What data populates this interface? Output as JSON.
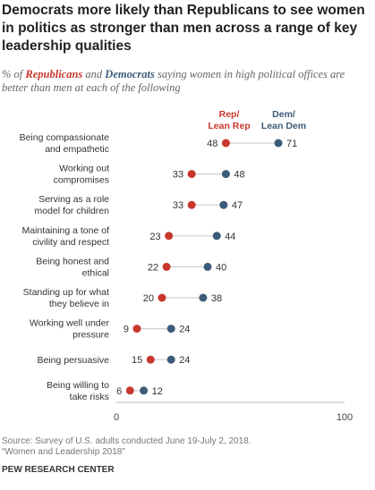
{
  "title": "Democrats more likely than Republicans to see women in politics as stronger than men across a range of key leadership qualities",
  "subtitle": {
    "pre": "% of ",
    "rep": "Republicans",
    "mid": " and ",
    "dem": "Democrats",
    "post": " saying women in high political offices are better than men at each of the following"
  },
  "legend": {
    "rep_line1": "Rep/",
    "rep_line2": "Lean Rep",
    "dem_line1": "Dem/",
    "dem_line2": "Lean Dem"
  },
  "source": {
    "line1": "Source: Survey of U.S. adults conducted June 19-July 2, 2018.",
    "line2": "“Women and Leadership 2018”"
  },
  "org": "PEW RESEARCH CENTER",
  "colors": {
    "rep": "#c8372d",
    "dem": "#3b5b78",
    "connector": "#cfcfcf"
  },
  "chart_data": {
    "type": "dot",
    "xlim": [
      0,
      100
    ],
    "x_ticks": [
      "0",
      "100"
    ],
    "categories": [
      [
        "Being compassionate",
        "and empathetic"
      ],
      [
        "Working out",
        "compromises"
      ],
      [
        "Serving as a role",
        "model for children"
      ],
      [
        "Maintaining a tone of",
        "civility and respect"
      ],
      [
        "Being honest and",
        "ethical"
      ],
      [
        "Standing up for what",
        "they believe in"
      ],
      [
        "Working well under",
        "pressure"
      ],
      [
        "Being persuasive"
      ],
      [
        "Being willing to",
        "take risks"
      ]
    ],
    "series": [
      {
        "name": "Rep/Lean Rep",
        "values": [
          48,
          33,
          33,
          23,
          22,
          20,
          9,
          15,
          6
        ]
      },
      {
        "name": "Dem/Lean Dem",
        "values": [
          71,
          48,
          47,
          44,
          40,
          38,
          24,
          24,
          12
        ]
      }
    ]
  }
}
